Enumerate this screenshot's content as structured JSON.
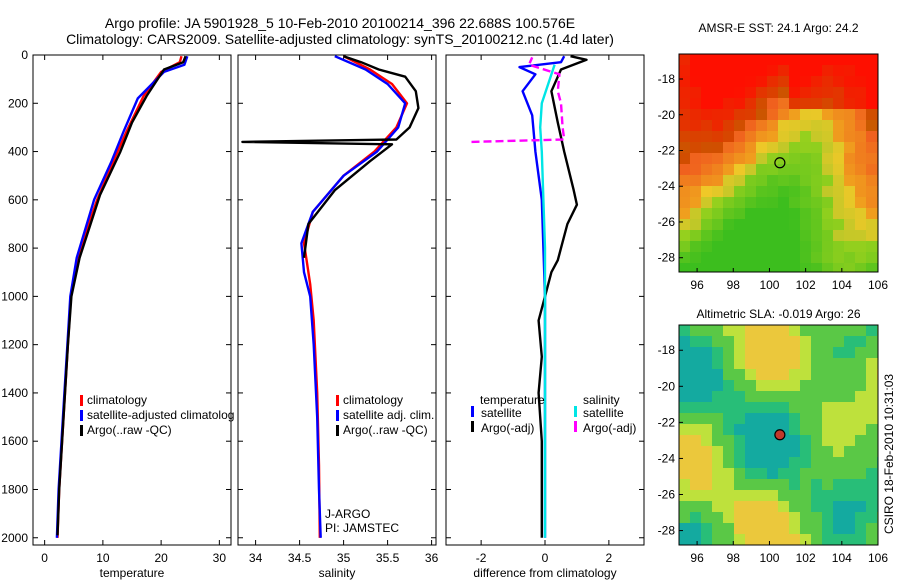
{
  "header": {
    "line1": "Argo profile: JA 5901928_5 10-Feb-2010 20100214_396 22.688S 100.576E",
    "line2": "Climatology: CARS2009. Satellite-adjusted climatology: synTS_20100212.nc (1.4d later)"
  },
  "side_label": "CSIRO 18-Feb-2010 10:31:03",
  "colors": {
    "climatology": "#ff0000",
    "satellite": "#0000ff",
    "argo": "#000000",
    "sat_sal": "#00e5e5",
    "argo_sal": "#ff00ff"
  },
  "chart_data": [
    {
      "type": "line",
      "name": "temperature-profile",
      "xlabel": "temperature",
      "xlim": [
        -2,
        32
      ],
      "ylim": [
        2030,
        0
      ],
      "xticks": [
        "0",
        "10",
        "20",
        "30"
      ],
      "yticks": [
        "0",
        "200",
        "400",
        "600",
        "800",
        "1000",
        "1200",
        "1400",
        "1600",
        "1800",
        "2000"
      ],
      "legend": [
        "climatology",
        "satellite-adjusted climatolog",
        "Argo(..raw -QC)"
      ],
      "series": [
        {
          "name": "climatology",
          "color": "#ff0000",
          "points": [
            [
              23.5,
              5
            ],
            [
              23.2,
              30
            ],
            [
              20,
              70
            ],
            [
              17,
              170
            ],
            [
              14,
              320
            ],
            [
              12,
              430
            ],
            [
              9,
              600
            ],
            [
              5.6,
              840
            ],
            [
              4.5,
              1000
            ],
            [
              4,
              1200
            ],
            [
              3.5,
              1400
            ],
            [
              3,
              1600
            ],
            [
              2.5,
              1800
            ],
            [
              2.2,
              2000
            ]
          ]
        },
        {
          "name": "satellite-adjusted climatolog",
          "color": "#0000ff",
          "points": [
            [
              24.5,
              5
            ],
            [
              24,
              40
            ],
            [
              20.5,
              70
            ],
            [
              16,
              180
            ],
            [
              13.5,
              320
            ],
            [
              11.5,
              440
            ],
            [
              8.5,
              600
            ],
            [
              5.5,
              840
            ],
            [
              4.4,
              1000
            ],
            [
              3.9,
              1200
            ],
            [
              3.4,
              1400
            ],
            [
              2.9,
              1600
            ],
            [
              2.4,
              1800
            ],
            [
              2.1,
              2000
            ]
          ]
        },
        {
          "name": "Argo(..raw -QC)",
          "color": "#000000",
          "points": [
            [
              24.2,
              5
            ],
            [
              23.8,
              30
            ],
            [
              20.5,
              60
            ],
            [
              17.5,
              170
            ],
            [
              15,
              280
            ],
            [
              13,
              400
            ],
            [
              9.5,
              580
            ],
            [
              6,
              840
            ],
            [
              4.6,
              1000
            ],
            [
              4,
              1200
            ],
            [
              3.5,
              1400
            ],
            [
              3,
              1600
            ],
            [
              2.5,
              1800
            ],
            [
              2.2,
              1990
            ]
          ]
        }
      ]
    },
    {
      "type": "line",
      "name": "salinity-profile",
      "xlabel": "salinity",
      "xlim": [
        33.8,
        36.05
      ],
      "ylim": [
        2030,
        0
      ],
      "xticks": [
        "34",
        "34.5",
        "35",
        "35.5",
        "36"
      ],
      "legend": [
        "climatology",
        "satellite adj. clim.",
        "Argo(..raw -QC)"
      ],
      "annotation": [
        "J-ARGO",
        "PI: JAMSTEC"
      ],
      "series": [
        {
          "name": "climatology",
          "color": "#ff0000",
          "points": [
            [
              35.0,
              5
            ],
            [
              35.3,
              60
            ],
            [
              35.55,
              120
            ],
            [
              35.72,
              200
            ],
            [
              35.6,
              300
            ],
            [
              35.35,
              400
            ],
            [
              35.0,
              500
            ],
            [
              34.65,
              650
            ],
            [
              34.55,
              780
            ],
            [
              34.58,
              850
            ],
            [
              34.62,
              950
            ],
            [
              34.66,
              1100
            ],
            [
              34.7,
              1400
            ],
            [
              34.72,
              1700
            ],
            [
              34.73,
              2000
            ]
          ]
        },
        {
          "name": "satellite adj. clim.",
          "color": "#0000ff",
          "points": [
            [
              34.9,
              5
            ],
            [
              35.25,
              60
            ],
            [
              35.5,
              120
            ],
            [
              35.7,
              200
            ],
            [
              35.62,
              300
            ],
            [
              35.38,
              400
            ],
            [
              35.0,
              500
            ],
            [
              34.65,
              650
            ],
            [
              34.52,
              780
            ],
            [
              34.55,
              900
            ],
            [
              34.62,
              1000
            ],
            [
              34.66,
              1200
            ],
            [
              34.7,
              1500
            ],
            [
              34.72,
              1800
            ],
            [
              34.74,
              2000
            ]
          ]
        },
        {
          "name": "Argo(..raw -QC)",
          "color": "#000000",
          "points": [
            [
              35.0,
              5
            ],
            [
              35.2,
              30
            ],
            [
              35.4,
              60
            ],
            [
              35.7,
              90
            ],
            [
              35.82,
              150
            ],
            [
              35.85,
              220
            ],
            [
              35.75,
              300
            ],
            [
              35.6,
              350
            ],
            [
              33.85,
              360
            ],
            [
              35.55,
              370
            ],
            [
              35.3,
              440
            ],
            [
              34.9,
              560
            ],
            [
              34.6,
              700
            ],
            [
              34.55,
              840
            ]
          ]
        }
      ]
    },
    {
      "type": "line",
      "name": "difference-profile",
      "xlabel": "difference from climatology",
      "xlim": [
        -3.1,
        3.1
      ],
      "ylim": [
        2030,
        0
      ],
      "xticks": [
        "-2",
        "0",
        "2"
      ],
      "legend_temperature": [
        "temperature",
        "satellite",
        "Argo(-adj)"
      ],
      "legend_salinity": [
        "salinity",
        "satellite",
        "Argo(-adj)"
      ],
      "series": [
        {
          "name": "temperature satellite",
          "color": "#0000ff",
          "points": [
            [
              0.6,
              5
            ],
            [
              0.5,
              30
            ],
            [
              -0.8,
              50
            ],
            [
              -0.3,
              80
            ],
            [
              -0.7,
              150
            ],
            [
              -0.4,
              250
            ],
            [
              -0.3,
              400
            ],
            [
              -0.2,
              500
            ],
            [
              -0.1,
              600
            ],
            [
              -0.05,
              800
            ],
            [
              0,
              1000
            ],
            [
              0,
              1500
            ],
            [
              0,
              2000
            ]
          ]
        },
        {
          "name": "temperature Argo(-adj)",
          "color": "#000000",
          "points": [
            [
              0.8,
              5
            ],
            [
              1.3,
              20
            ],
            [
              0.5,
              60
            ],
            [
              0.2,
              150
            ],
            [
              0.4,
              280
            ],
            [
              0.6,
              400
            ],
            [
              0.9,
              560
            ],
            [
              1.0,
              620
            ],
            [
              0.7,
              700
            ],
            [
              0.5,
              800
            ],
            [
              0.4,
              850
            ],
            [
              0.2,
              900
            ],
            [
              0.0,
              1000
            ],
            [
              -0.2,
              1100
            ],
            [
              -0.1,
              1250
            ],
            [
              -0.2,
              1400
            ],
            [
              -0.1,
              1600
            ],
            [
              -0.1,
              1800
            ],
            [
              -0.1,
              2000
            ]
          ]
        },
        {
          "name": "salinity satellite",
          "color": "#00e5e5",
          "points": [
            [
              0.3,
              40
            ],
            [
              0.1,
              120
            ],
            [
              -0.1,
              200
            ],
            [
              -0.15,
              300
            ],
            [
              -0.1,
              400
            ],
            [
              -0.05,
              600
            ],
            [
              0,
              800
            ],
            [
              0,
              1200
            ],
            [
              0,
              1600
            ],
            [
              0,
              2000
            ]
          ]
        },
        {
          "name": "salinity Argo(-adj)",
          "color": "#ff00ff",
          "points": [
            [
              -2.3,
              360
            ],
            [
              0.6,
              350
            ],
            [
              0.55,
              300
            ],
            [
              0.5,
              200
            ],
            [
              0.4,
              150
            ],
            [
              0.45,
              80
            ],
            [
              -0.5,
              40
            ],
            [
              -0.4,
              10
            ]
          ]
        }
      ]
    },
    {
      "type": "heatmap",
      "name": "sst-map",
      "title": "AMSR-E SST: 24.1  Argo: 24.2",
      "xlim": [
        95,
        106
      ],
      "ylim": [
        -28.8,
        -16.6
      ],
      "xticks": [
        "96",
        "98",
        "100",
        "102",
        "104",
        "106"
      ],
      "yticks": [
        "-18",
        "-20",
        "-22",
        "-24",
        "-26",
        "-28"
      ],
      "argo_location": [
        100.576,
        -22.688
      ]
    },
    {
      "type": "heatmap",
      "name": "sla-map",
      "title": "Altimetric SLA: -0.019  Argo: 26",
      "xlim": [
        95,
        106
      ],
      "ylim": [
        -28.8,
        -16.6
      ],
      "xticks": [
        "96",
        "98",
        "100",
        "102",
        "104",
        "106"
      ],
      "yticks": [
        "-18",
        "-20",
        "-22",
        "-24",
        "-26",
        "-28"
      ],
      "argo_location": [
        100.576,
        -22.688
      ]
    }
  ]
}
